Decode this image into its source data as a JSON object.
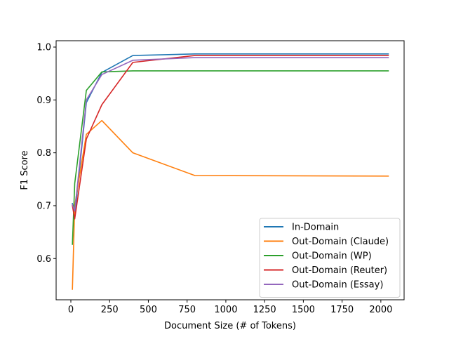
{
  "chart_data": {
    "type": "line",
    "title": "",
    "xlabel": "Document Size (# of Tokens)",
    "ylabel": "F1 Score",
    "xlim": [
      -95,
      2150
    ],
    "ylim": [
      0.522,
      1.012
    ],
    "xticks": [
      0,
      250,
      500,
      750,
      1000,
      1250,
      1500,
      1750,
      2000
    ],
    "xtick_labels": [
      "0",
      "250",
      "500",
      "750",
      "1000",
      "1250",
      "1500",
      "1750",
      "2000"
    ],
    "yticks": [
      0.6,
      0.7,
      0.8,
      0.9,
      1.0
    ],
    "ytick_labels": [
      "0.6",
      "0.7",
      "0.8",
      "0.9",
      "1.0"
    ],
    "grid": false,
    "legend_position": "lower-right",
    "x": [
      10,
      25,
      100,
      200,
      400,
      800,
      2048
    ],
    "series": [
      {
        "name": "In-Domain",
        "color": "#1f77b4",
        "values": [
          0.704,
          0.68,
          0.895,
          0.952,
          0.984,
          0.987,
          0.987
        ]
      },
      {
        "name": "Out-Domain (Claude)",
        "color": "#ff7f0e",
        "values": [
          0.542,
          0.7,
          0.835,
          0.861,
          0.8,
          0.757,
          0.756
        ]
      },
      {
        "name": "Out-Domain (WP)",
        "color": "#2ca02c",
        "values": [
          0.627,
          0.742,
          0.918,
          0.953,
          0.955,
          0.955,
          0.955
        ]
      },
      {
        "name": "Out-Domain (Reuter)",
        "color": "#d62728",
        "values": [
          0.7,
          0.675,
          0.826,
          0.891,
          0.971,
          0.984,
          0.984
        ]
      },
      {
        "name": "Out-Domain (Essay)",
        "color": "#9467bd",
        "values": [
          0.702,
          0.69,
          0.9,
          0.948,
          0.975,
          0.98,
          0.98
        ]
      }
    ]
  }
}
